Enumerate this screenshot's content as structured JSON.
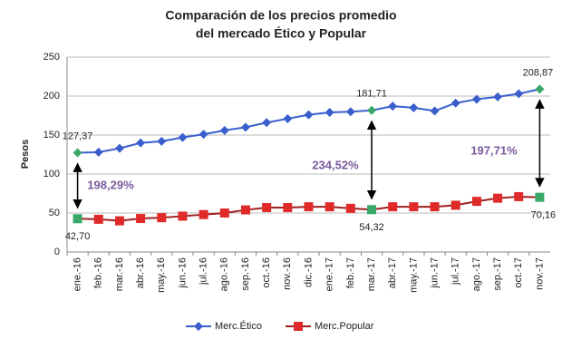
{
  "chart_data": {
    "type": "line",
    "title": [
      "Comparación de los precios promedio",
      "del mercado Ético y Popular"
    ],
    "y_label": "Pesos",
    "categories": [
      "ene.-16",
      "feb.-16",
      "mar.-16",
      "abr.-16",
      "may.-16",
      "jun.-16",
      "jul.-16",
      "ago.-16",
      "sep.-16",
      "oct.-16",
      "nov.-16",
      "dic.-16",
      "ene.-17",
      "feb.-17",
      "mar.-17",
      "abr.-17",
      "may.-17",
      "jun.-17",
      "jul.-17",
      "ago.-17",
      "sep.-17",
      "oct.-17",
      "nov.-17"
    ],
    "series": [
      {
        "name": "Merc.Ético",
        "color": "#3a5fcd",
        "marker": "diamond",
        "values": [
          127.37,
          128,
          133,
          140,
          142,
          147,
          151,
          156,
          160,
          166,
          171,
          176,
          179,
          180,
          181.71,
          187,
          185,
          181,
          191,
          196,
          199,
          203,
          208.87
        ],
        "value_labels": [
          "127,37",
          null,
          null,
          null,
          null,
          null,
          null,
          null,
          null,
          null,
          null,
          null,
          null,
          null,
          "181,71",
          null,
          null,
          null,
          null,
          null,
          null,
          null,
          "208,87"
        ]
      },
      {
        "name": "Merc.Popular",
        "color": "#e02a2a",
        "marker": "square",
        "values": [
          42.7,
          42,
          40,
          43,
          44,
          46,
          48,
          50,
          54,
          57,
          57,
          58,
          58,
          56,
          54.32,
          58,
          58,
          58,
          60,
          65,
          69,
          71,
          70.16
        ],
        "value_labels": [
          "42,70",
          null,
          null,
          null,
          null,
          null,
          null,
          null,
          null,
          null,
          null,
          null,
          null,
          null,
          "54,32",
          null,
          null,
          null,
          null,
          null,
          null,
          null,
          "70,16"
        ]
      }
    ],
    "highlight_color": "#3aa868",
    "annotations": [
      "198,29%",
      "234,52%",
      "197,71%"
    ],
    "ylim": [
      0,
      250
    ],
    "yticks": [
      0,
      50,
      100,
      150,
      200,
      250
    ],
    "grid": true,
    "legend": "bottom"
  }
}
